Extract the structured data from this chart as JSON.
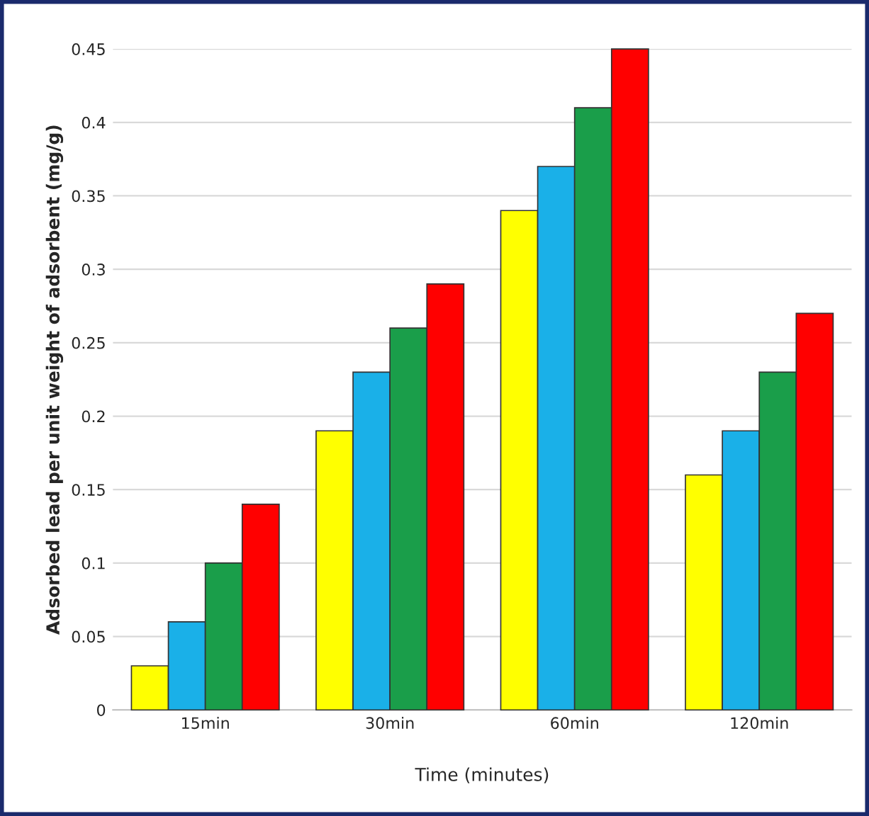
{
  "chart_data": {
    "type": "bar",
    "xlabel": "Time (minutes)",
    "ylabel": "Adsorbed lead per unit weight of adsorbent (mg/g)",
    "categories": [
      "15min",
      "30min",
      "60min",
      "120min"
    ],
    "series": [
      {
        "color": "#ffff00",
        "values": [
          0.03,
          0.19,
          0.34,
          0.16
        ]
      },
      {
        "color": "#1ab0e8",
        "values": [
          0.06,
          0.23,
          0.37,
          0.19
        ]
      },
      {
        "color": "#1a9e4a",
        "values": [
          0.1,
          0.26,
          0.41,
          0.23
        ]
      },
      {
        "color": "#ff0000",
        "values": [
          0.14,
          0.29,
          0.45,
          0.27
        ]
      }
    ],
    "ylim": [
      0,
      0.45
    ],
    "yticks": [
      0,
      0.05,
      0.1,
      0.15,
      0.2,
      0.25,
      0.3,
      0.35,
      0.4,
      0.45
    ],
    "grid": "y"
  }
}
